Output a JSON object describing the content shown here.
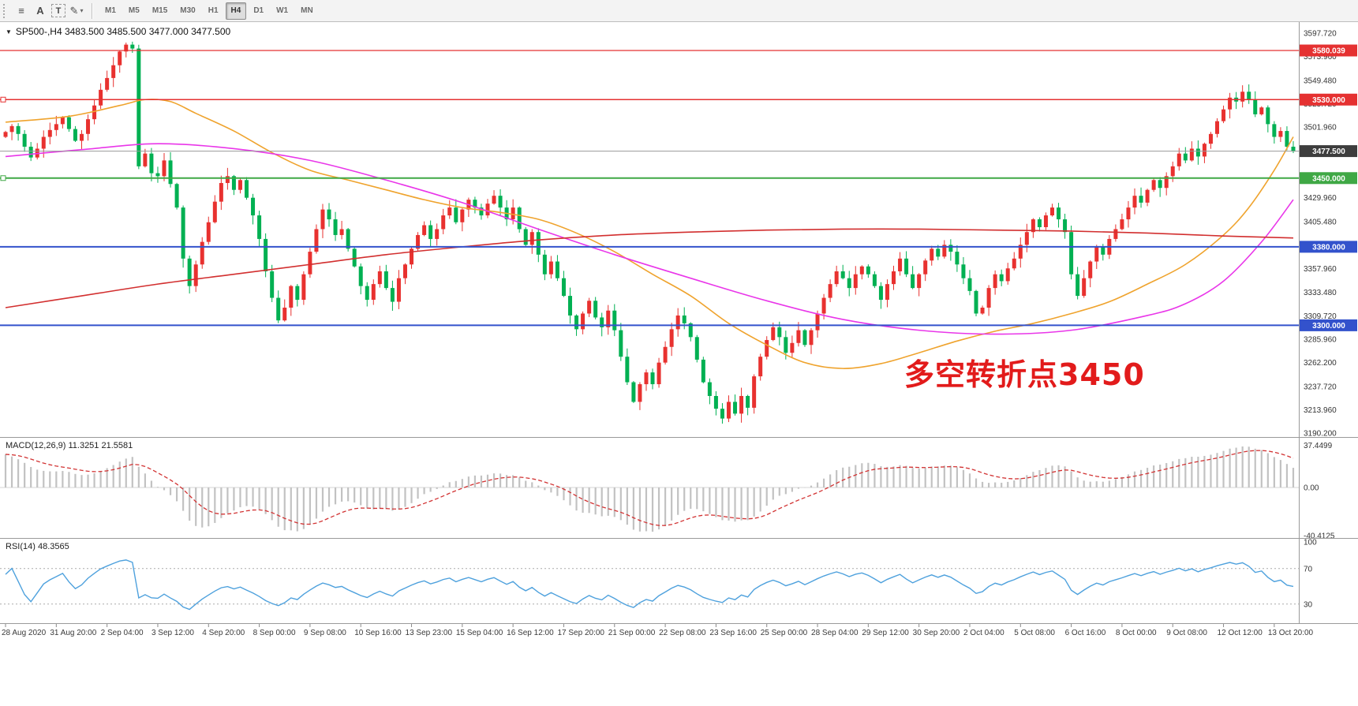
{
  "toolbar": {
    "icons": [
      {
        "name": "charts-list-icon",
        "glyph": "≡"
      },
      {
        "name": "font-tool-icon",
        "glyph": "A"
      },
      {
        "name": "text-tool-icon",
        "glyph": "T",
        "boxed": true
      },
      {
        "name": "shapes-tool-icon",
        "glyph": "✎",
        "caret": true
      }
    ],
    "timeframes": [
      "M1",
      "M5",
      "M15",
      "M30",
      "H1",
      "H4",
      "D1",
      "W1",
      "MN"
    ],
    "active_timeframe": "H4"
  },
  "chart_data": {
    "type": "candlestick",
    "symbol": "SP500-",
    "timeframe": "H4",
    "title_text": "SP500-,H4  3483.500 3485.500 3477.000 3477.500",
    "current_bar": {
      "open": 3483.5,
      "high": 3485.5,
      "low": 3477.0,
      "close": 3477.5
    },
    "annotation": {
      "text": "多空转折点3450",
      "color": "#e21b1b"
    },
    "colors": {
      "up": "#e8312f",
      "down": "#00b052",
      "background": "#ffffff",
      "axis_text": "#333333"
    },
    "y_axis": {
      "range": [
        3190.2,
        3597.72
      ],
      "ticks": [
        {
          "label": "3597.720",
          "price": 3597.72
        },
        {
          "label": "3573.960",
          "price": 3573.96
        },
        {
          "label": "3549.480",
          "price": 3549.48
        },
        {
          "label": "3525.720",
          "price": 3525.72
        },
        {
          "label": "3501.960",
          "price": 3501.96
        },
        {
          "label": "3429.960",
          "price": 3429.96
        },
        {
          "label": "3405.480",
          "price": 3405.48
        },
        {
          "label": "3357.960",
          "price": 3357.96
        },
        {
          "label": "3333.480",
          "price": 3333.48
        },
        {
          "label": "3309.720",
          "price": 3309.72
        },
        {
          "label": "3285.960",
          "price": 3285.96
        },
        {
          "label": "3262.200",
          "price": 3262.2
        },
        {
          "label": "3237.720",
          "price": 3237.72
        },
        {
          "label": "3213.960",
          "price": 3213.96
        },
        {
          "label": "3190.200",
          "price": 3190.2
        }
      ]
    },
    "x_axis": {
      "bars_per_label": 8,
      "labels": [
        "28 Aug 2020",
        "31 Aug 20:00",
        "2 Sep 04:00",
        "3 Sep 12:00",
        "4 Sep 20:00",
        "8 Sep 00:00",
        "9 Sep 08:00",
        "10 Sep 16:00",
        "13 Sep 23:00",
        "15 Sep 04:00",
        "16 Sep 12:00",
        "17 Sep 20:00",
        "21 Sep 00:00",
        "22 Sep 08:00",
        "23 Sep 16:00",
        "25 Sep 00:00",
        "28 Sep 04:00",
        "29 Sep 12:00",
        "30 Sep 20:00",
        "2 Oct 04:00",
        "5 Oct 08:00",
        "6 Oct 16:00",
        "8 Oct 00:00",
        "9 Oct 08:00",
        "12 Oct 12:00",
        "13 Oct 20:00"
      ]
    },
    "levels": [
      {
        "label": "3580.039",
        "price": 3580.039,
        "color": "#e53131",
        "width": 1.2
      },
      {
        "label": "3530.000",
        "price": 3530.0,
        "color": "#e53131",
        "width": 1.4,
        "handle": true
      },
      {
        "label": "3477.500",
        "price": 3477.5,
        "color": "#9a9a9a",
        "badge": "#3d3d3d",
        "width": 1,
        "current": true
      },
      {
        "label": "3450.000",
        "price": 3450.0,
        "color": "#3fa845",
        "width": 2,
        "handle": true
      },
      {
        "label": "3380.000",
        "price": 3380.0,
        "color": "#3352cc",
        "width": 2
      },
      {
        "label": "3300.000",
        "price": 3300.0,
        "color": "#3352cc",
        "width": 2
      }
    ],
    "closes": [
      3497,
      3503,
      3495,
      3482,
      3471,
      3480,
      3492,
      3499,
      3505,
      3512,
      3500,
      3488,
      3495,
      3510,
      3524,
      3540,
      3552,
      3565,
      3579,
      3586,
      3582,
      3462,
      3475,
      3455,
      3452,
      3468,
      3444,
      3420,
      3368,
      3340,
      3362,
      3385,
      3405,
      3426,
      3445,
      3452,
      3438,
      3448,
      3430,
      3412,
      3388,
      3355,
      3328,
      3305,
      3318,
      3340,
      3326,
      3352,
      3375,
      3398,
      3418,
      3408,
      3392,
      3398,
      3378,
      3360,
      3340,
      3326,
      3342,
      3355,
      3338,
      3324,
      3348,
      3362,
      3378,
      3392,
      3402,
      3388,
      3398,
      3412,
      3420,
      3405,
      3418,
      3428,
      3420,
      3412,
      3424,
      3432,
      3420,
      3408,
      3420,
      3398,
      3382,
      3395,
      3372,
      3352,
      3365,
      3348,
      3330,
      3310,
      3296,
      3312,
      3325,
      3308,
      3298,
      3315,
      3295,
      3268,
      3242,
      3222,
      3240,
      3252,
      3240,
      3262,
      3278,
      3296,
      3310,
      3302,
      3288,
      3265,
      3242,
      3228,
      3215,
      3205,
      3222,
      3210,
      3228,
      3216,
      3248,
      3268,
      3285,
      3298,
      3288,
      3272,
      3282,
      3295,
      3280,
      3295,
      3312,
      3328,
      3342,
      3355,
      3348,
      3338,
      3352,
      3360,
      3352,
      3340,
      3326,
      3342,
      3355,
      3368,
      3352,
      3338,
      3352,
      3366,
      3378,
      3370,
      3382,
      3375,
      3362,
      3348,
      3335,
      3312,
      3318,
      3338,
      3352,
      3345,
      3358,
      3368,
      3382,
      3395,
      3408,
      3400,
      3412,
      3420,
      3408,
      3395,
      3352,
      3330,
      3348,
      3365,
      3380,
      3372,
      3388,
      3398,
      3408,
      3420,
      3432,
      3425,
      3438,
      3448,
      3440,
      3452,
      3462,
      3475,
      3468,
      3480,
      3472,
      3485,
      3495,
      3508,
      3520,
      3532,
      3528,
      3538,
      3530,
      3515,
      3522,
      3505,
      3492,
      3498,
      3482,
      3477.5
    ],
    "moving_averages": [
      {
        "name": "ma-fast-line",
        "color": "#efa32d",
        "points": [
          [
            0,
            3507
          ],
          [
            10,
            3513
          ],
          [
            18,
            3524
          ],
          [
            22,
            3530
          ],
          [
            26,
            3528
          ],
          [
            30,
            3516
          ],
          [
            36,
            3498
          ],
          [
            42,
            3476
          ],
          [
            48,
            3458
          ],
          [
            54,
            3448
          ],
          [
            60,
            3438
          ],
          [
            66,
            3428
          ],
          [
            72,
            3420
          ],
          [
            78,
            3415
          ],
          [
            84,
            3408
          ],
          [
            90,
            3394
          ],
          [
            96,
            3375
          ],
          [
            102,
            3352
          ],
          [
            108,
            3330
          ],
          [
            114,
            3302
          ],
          [
            120,
            3280
          ],
          [
            126,
            3262
          ],
          [
            132,
            3256
          ],
          [
            138,
            3261
          ],
          [
            144,
            3272
          ],
          [
            150,
            3284
          ],
          [
            156,
            3294
          ],
          [
            162,
            3302
          ],
          [
            168,
            3312
          ],
          [
            174,
            3324
          ],
          [
            180,
            3342
          ],
          [
            186,
            3362
          ],
          [
            192,
            3392
          ],
          [
            196,
            3420
          ],
          [
            200,
            3458
          ],
          [
            203,
            3492
          ]
        ]
      },
      {
        "name": "ma-mid-line",
        "color": "#e936e9",
        "points": [
          [
            0,
            3472
          ],
          [
            12,
            3479
          ],
          [
            24,
            3485
          ],
          [
            36,
            3480
          ],
          [
            48,
            3468
          ],
          [
            60,
            3448
          ],
          [
            72,
            3425
          ],
          [
            84,
            3398
          ],
          [
            96,
            3372
          ],
          [
            108,
            3348
          ],
          [
            120,
            3325
          ],
          [
            132,
            3306
          ],
          [
            144,
            3295
          ],
          [
            156,
            3291
          ],
          [
            168,
            3295
          ],
          [
            180,
            3310
          ],
          [
            186,
            3322
          ],
          [
            192,
            3345
          ],
          [
            198,
            3385
          ],
          [
            203,
            3428
          ]
        ]
      },
      {
        "name": "ma-slow-line",
        "color": "#d22f2f",
        "points": [
          [
            0,
            3318
          ],
          [
            12,
            3330
          ],
          [
            24,
            3342
          ],
          [
            36,
            3352
          ],
          [
            48,
            3362
          ],
          [
            60,
            3372
          ],
          [
            72,
            3380
          ],
          [
            84,
            3387
          ],
          [
            96,
            3392
          ],
          [
            108,
            3395
          ],
          [
            120,
            3397
          ],
          [
            132,
            3398
          ],
          [
            144,
            3398
          ],
          [
            156,
            3397
          ],
          [
            168,
            3396
          ],
          [
            180,
            3394
          ],
          [
            192,
            3391
          ],
          [
            203,
            3389
          ]
        ]
      }
    ],
    "indicators": {
      "macd": {
        "label": "MACD(12,26,9) 11.3251 21.5581",
        "fast": 12,
        "slow": 26,
        "signal": 9,
        "current_values": [
          11.3251,
          21.5581
        ],
        "axis_labels": [
          "37.4499",
          "0.00",
          "-40.4125"
        ],
        "axis_max": 37.4499,
        "axis_min": -40.4125,
        "seed_fast": 3500,
        "seed_slow": 3468,
        "histogram_color": "#c2c2c2",
        "signal_color": "#d23333"
      },
      "rsi": {
        "label": "RSI(14) 48.3565",
        "period": 14,
        "current_value": 48.3565,
        "axis_labels": [
          "100",
          "70",
          "30"
        ],
        "levels": [
          70,
          30
        ],
        "color": "#4ea1dd",
        "seed_gain": 1.3,
        "seed_loss": 0.75
      }
    }
  }
}
